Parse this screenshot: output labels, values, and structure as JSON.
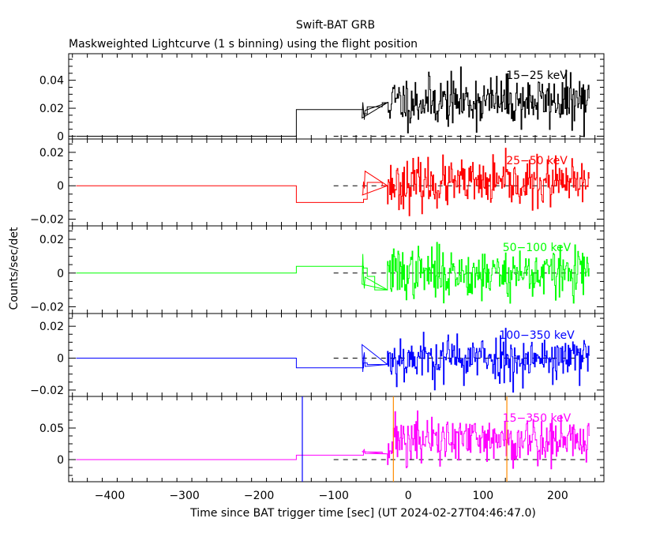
{
  "chart_data": {
    "type": "line",
    "title": "Swift-BAT GRB",
    "subtitle": "Maskweighted Lightcurve (1 s binning) using the flight position",
    "xlabel": "Time since BAT trigger time [sec] (UT 2024-02-27T04:46:47.0)",
    "ylabel": "Counts/sec/det",
    "xlim": [
      -455,
      262
    ],
    "x_ticks": [
      -400,
      -300,
      -200,
      -100,
      0,
      100,
      200
    ],
    "x_tick_labels": [
      "−400",
      "−300",
      "−200",
      "−100",
      "0",
      "100",
      "200"
    ],
    "reference_line_x_start": -100,
    "data_start": -445,
    "data_end": 242,
    "panels": [
      {
        "band": "15−25 keV",
        "color": "#000000",
        "ylim": [
          -0.002,
          0.059
        ],
        "y_ticks": [
          0,
          0.02,
          0.04
        ],
        "y_tick_labels": [
          "0",
          "0.02",
          "0.04"
        ],
        "steps": [
          {
            "x0": -445,
            "x1": -150,
            "y": 0.0
          },
          {
            "x0": -150,
            "x1": -60,
            "y": 0.019
          },
          {
            "x0": -60,
            "x1": -55,
            "y": 0.016
          },
          {
            "x0": -55,
            "x1": -35,
            "y": 0.021
          },
          {
            "x0": -35,
            "x1": -28,
            "y": 0.024
          }
        ],
        "noise": {
          "x0": -28,
          "x1": 242,
          "mean": 0.025,
          "sd": 0.009,
          "seed": 11
        }
      },
      {
        "band": "25−50 keV",
        "color": "#ff0000",
        "ylim": [
          -0.024,
          0.028
        ],
        "y_ticks": [
          -0.02,
          0,
          0.02
        ],
        "y_tick_labels": [
          "−0.02",
          "0",
          "0.02"
        ],
        "steps": [
          {
            "x0": -445,
            "x1": -150,
            "y": 0.0
          },
          {
            "x0": -150,
            "x1": -60,
            "y": -0.01
          },
          {
            "x0": -60,
            "x1": -55,
            "y": -0.008
          },
          {
            "x0": -55,
            "x1": -35,
            "y": 0.002
          },
          {
            "x0": -35,
            "x1": -28,
            "y": 0.0
          }
        ],
        "noise": {
          "x0": -28,
          "x1": 242,
          "mean": 0.001,
          "sd": 0.007,
          "seed": 23
        }
      },
      {
        "band": "50−100 keV",
        "color": "#00ff00",
        "ylim": [
          -0.024,
          0.028
        ],
        "y_ticks": [
          -0.02,
          0,
          0.02
        ],
        "y_tick_labels": [
          "−0.02",
          "0",
          "0.02"
        ],
        "steps": [
          {
            "x0": -445,
            "x1": -150,
            "y": 0.0
          },
          {
            "x0": -150,
            "x1": -60,
            "y": 0.004
          },
          {
            "x0": -60,
            "x1": -55,
            "y": 0.003
          },
          {
            "x0": -55,
            "x1": -45,
            "y": -0.002
          },
          {
            "x0": -45,
            "x1": -28,
            "y": -0.01
          }
        ],
        "noise": {
          "x0": -28,
          "x1": 242,
          "mean": 0.0,
          "sd": 0.0075,
          "seed": 37
        }
      },
      {
        "band": "100−350 keV",
        "color": "#0000ff",
        "ylim": [
          -0.024,
          0.028
        ],
        "y_ticks": [
          -0.02,
          0,
          0.02
        ],
        "y_tick_labels": [
          "−0.02",
          "0",
          "0.02"
        ],
        "steps": [
          {
            "x0": -445,
            "x1": -150,
            "y": 0.0
          },
          {
            "x0": -150,
            "x1": -60,
            "y": -0.006
          },
          {
            "x0": -60,
            "x1": -55,
            "y": -0.003
          },
          {
            "x0": -55,
            "x1": -28,
            "y": -0.004
          }
        ],
        "noise": {
          "x0": -28,
          "x1": 242,
          "mean": 0.0,
          "sd": 0.0075,
          "seed": 53
        }
      },
      {
        "band": "15−350 keV",
        "color": "#ff00ff",
        "ylim": [
          -0.035,
          0.1
        ],
        "y_ticks": [
          0,
          0.05
        ],
        "y_tick_labels": [
          "0",
          "0.05"
        ],
        "steps": [
          {
            "x0": -445,
            "x1": -150,
            "y": 0.0
          },
          {
            "x0": -150,
            "x1": -60,
            "y": 0.007
          },
          {
            "x0": -60,
            "x1": -55,
            "y": 0.012
          },
          {
            "x0": -55,
            "x1": -35,
            "y": 0.012
          },
          {
            "x0": -35,
            "x1": -28,
            "y": 0.009
          }
        ],
        "noise": {
          "x0": -28,
          "x1": 242,
          "mean": 0.03,
          "sd": 0.02,
          "seed": 71
        },
        "markers": [
          {
            "x": -142,
            "color": "#0000ff"
          },
          {
            "x": -20,
            "color": "#ff8c00"
          },
          {
            "x": 132,
            "color": "#ff8c00"
          }
        ]
      }
    ]
  }
}
